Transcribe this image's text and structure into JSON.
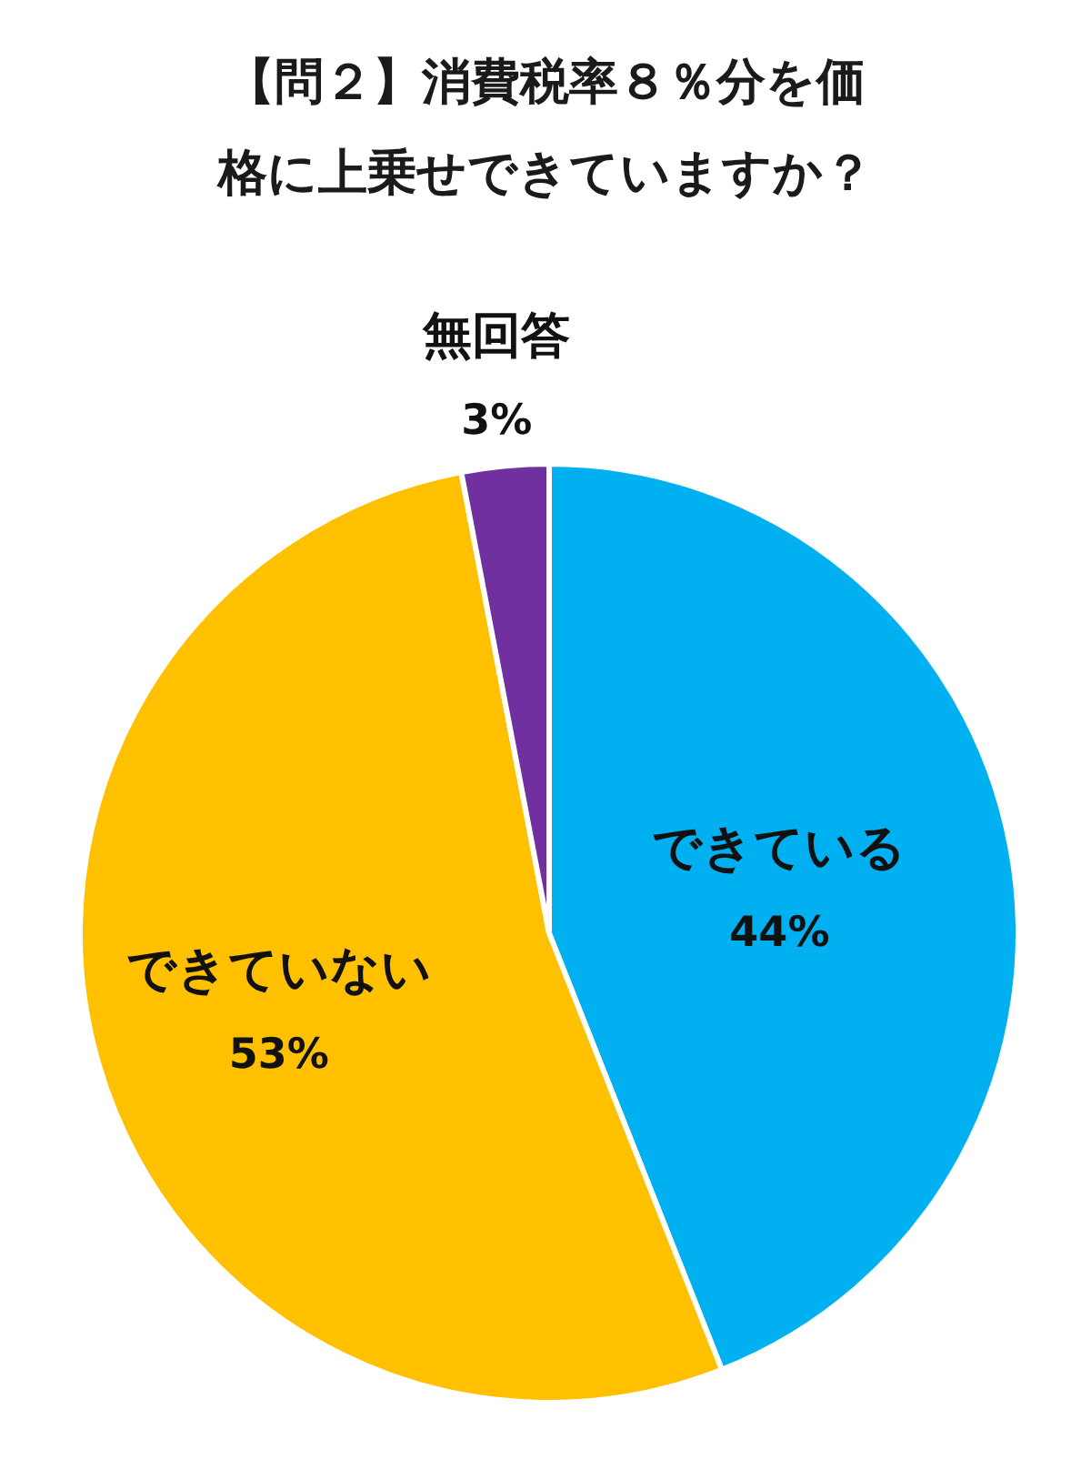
{
  "chart_data": {
    "type": "pie",
    "title": "【問２】消費税率８％分を価格に上乗せできていますか？",
    "categories": [
      "できている",
      "できていない",
      "無回答"
    ],
    "values": [
      44,
      53,
      3
    ],
    "colors": [
      "#00b0f0",
      "#ffc000",
      "#7030a0"
    ],
    "value_labels": [
      "44%",
      "53%",
      "3%"
    ]
  }
}
